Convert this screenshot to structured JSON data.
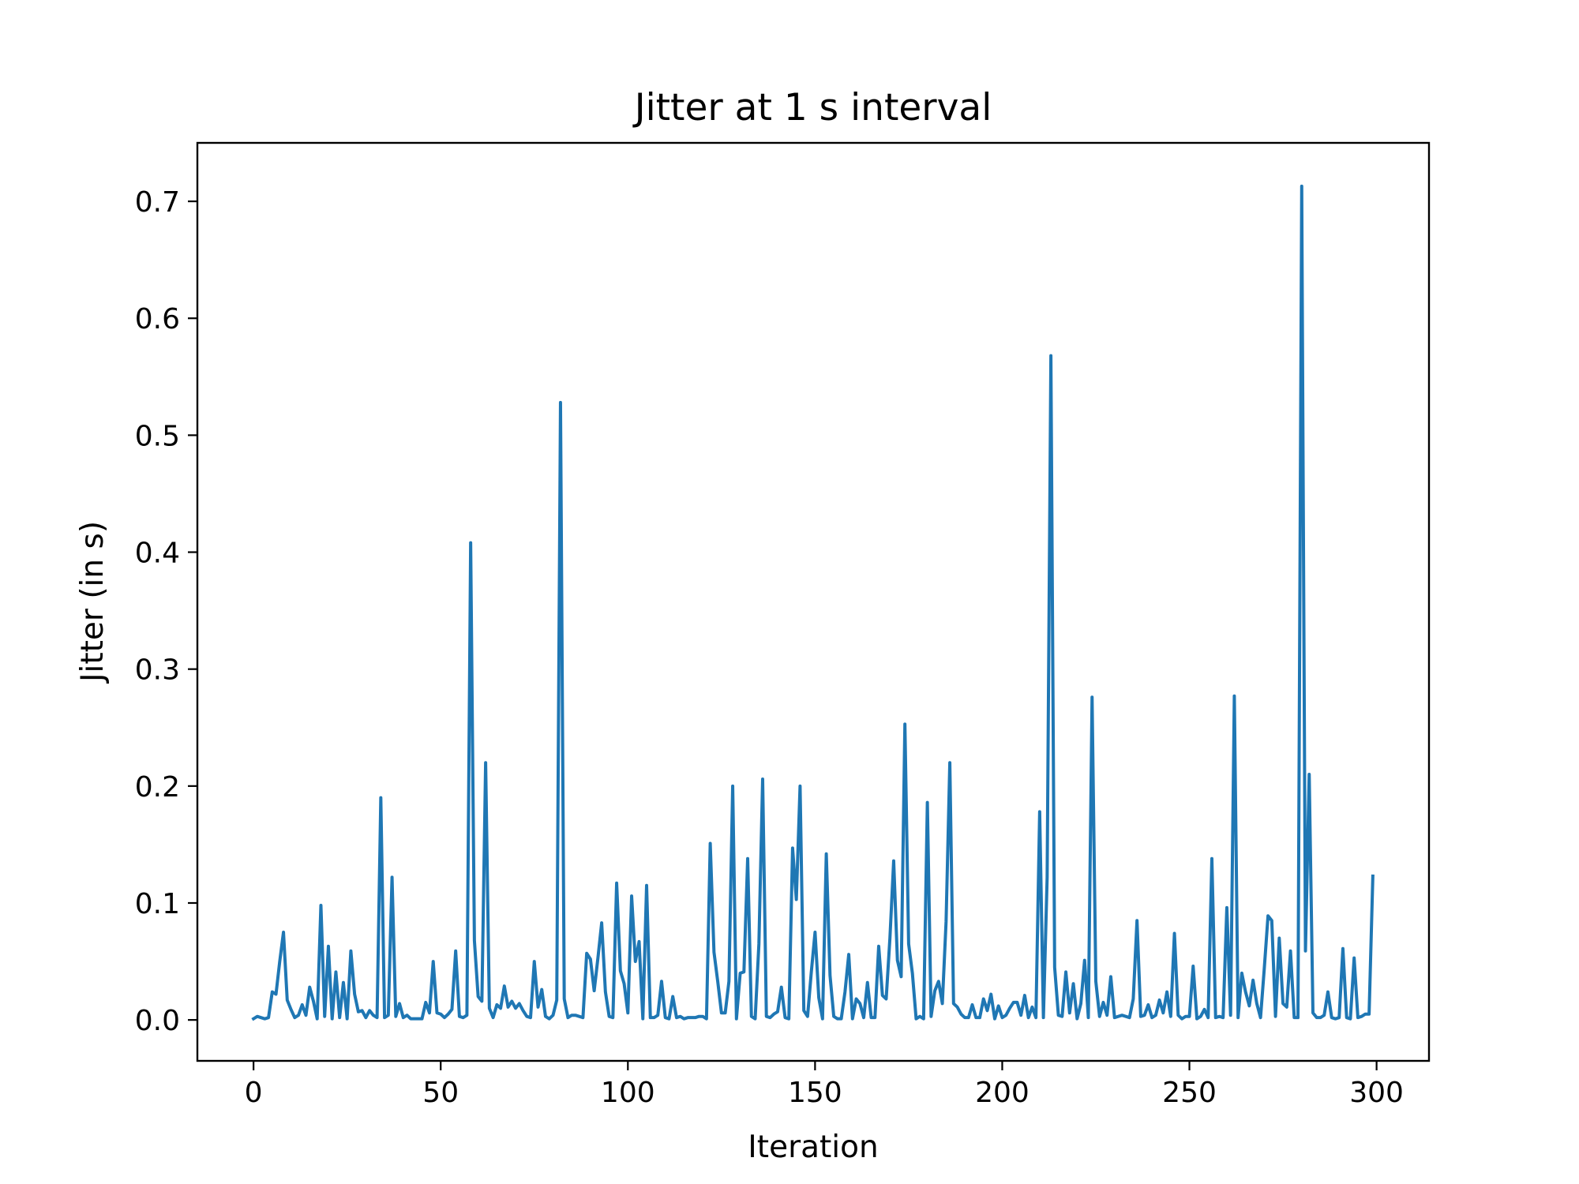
{
  "chart_data": {
    "type": "line",
    "title": "Jitter at 1 s interval",
    "xlabel": "Iteration",
    "ylabel": "Jitter (in s)",
    "xlim": [
      -15,
      314
    ],
    "ylim": [
      -0.035,
      0.75
    ],
    "xticks": [
      0,
      50,
      100,
      150,
      200,
      250,
      300
    ],
    "yticks": [
      0.0,
      0.1,
      0.2,
      0.3,
      0.4,
      0.5,
      0.6,
      0.7
    ],
    "ytick_labels": [
      "0.0",
      "0.1",
      "0.2",
      "0.3",
      "0.4",
      "0.5",
      "0.6",
      "0.7"
    ],
    "grid": false,
    "color": "#1f77b4",
    "series": [
      {
        "x_start": 0,
        "x_step": 1,
        "values": [
          0.001,
          0.003,
          0.002,
          0.001,
          0.002,
          0.024,
          0.022,
          0.05,
          0.075,
          0.017,
          0.009,
          0.002,
          0.004,
          0.013,
          0.004,
          0.028,
          0.016,
          0.001,
          0.098,
          0.003,
          0.063,
          0.001,
          0.041,
          0.002,
          0.032,
          0.001,
          0.059,
          0.022,
          0.007,
          0.008,
          0.002,
          0.008,
          0.004,
          0.002,
          0.19,
          0.002,
          0.004,
          0.122,
          0.003,
          0.014,
          0.002,
          0.004,
          0.001,
          0.001,
          0.001,
          0.001,
          0.015,
          0.006,
          0.05,
          0.006,
          0.005,
          0.002,
          0.005,
          0.009,
          0.059,
          0.003,
          0.002,
          0.004,
          0.408,
          0.068,
          0.02,
          0.016,
          0.22,
          0.01,
          0.002,
          0.013,
          0.01,
          0.029,
          0.011,
          0.016,
          0.01,
          0.014,
          0.008,
          0.003,
          0.002,
          0.05,
          0.011,
          0.026,
          0.003,
          0.001,
          0.004,
          0.017,
          0.528,
          0.018,
          0.002,
          0.004,
          0.004,
          0.003,
          0.002,
          0.057,
          0.052,
          0.025,
          0.053,
          0.083,
          0.024,
          0.003,
          0.002,
          0.117,
          0.042,
          0.031,
          0.006,
          0.106,
          0.05,
          0.067,
          0.001,
          0.115,
          0.002,
          0.002,
          0.004,
          0.033,
          0.002,
          0.001,
          0.02,
          0.002,
          0.003,
          0.001,
          0.002,
          0.002,
          0.002,
          0.003,
          0.003,
          0.001,
          0.151,
          0.058,
          0.033,
          0.006,
          0.006,
          0.033,
          0.2,
          0.001,
          0.04,
          0.041,
          0.138,
          0.003,
          0.001,
          0.065,
          0.206,
          0.003,
          0.002,
          0.005,
          0.007,
          0.028,
          0.002,
          0.001,
          0.147,
          0.103,
          0.2,
          0.008,
          0.003,
          0.041,
          0.075,
          0.019,
          0.001,
          0.142,
          0.038,
          0.003,
          0.001,
          0.001,
          0.024,
          0.056,
          0.001,
          0.018,
          0.014,
          0.002,
          0.032,
          0.002,
          0.002,
          0.063,
          0.021,
          0.018,
          0.07,
          0.136,
          0.051,
          0.037,
          0.253,
          0.065,
          0.04,
          0.001,
          0.003,
          0.001,
          0.186,
          0.003,
          0.025,
          0.033,
          0.014,
          0.084,
          0.22,
          0.014,
          0.011,
          0.005,
          0.002,
          0.002,
          0.013,
          0.002,
          0.002,
          0.018,
          0.008,
          0.022,
          0.001,
          0.012,
          0.002,
          0.004,
          0.01,
          0.015,
          0.015,
          0.004,
          0.021,
          0.002,
          0.011,
          0.002,
          0.178,
          0.002,
          0.122,
          0.568,
          0.045,
          0.004,
          0.003,
          0.041,
          0.006,
          0.031,
          0.001,
          0.014,
          0.051,
          0.002,
          0.276,
          0.033,
          0.003,
          0.015,
          0.004,
          0.037,
          0.002,
          0.003,
          0.004,
          0.003,
          0.002,
          0.018,
          0.085,
          0.003,
          0.004,
          0.013,
          0.002,
          0.004,
          0.017,
          0.006,
          0.024,
          0.003,
          0.074,
          0.004,
          0.001,
          0.003,
          0.003,
          0.046,
          0.001,
          0.003,
          0.009,
          0.002,
          0.138,
          0.002,
          0.003,
          0.002,
          0.096,
          0.004,
          0.277,
          0.002,
          0.04,
          0.024,
          0.012,
          0.034,
          0.014,
          0.002,
          0.044,
          0.089,
          0.085,
          0.003,
          0.07,
          0.014,
          0.011,
          0.059,
          0.002,
          0.002,
          0.713,
          0.059,
          0.21,
          0.006,
          0.002,
          0.002,
          0.004,
          0.024,
          0.002,
          0.001,
          0.002,
          0.061,
          0.002,
          0.001,
          0.053,
          0.002,
          0.003,
          0.005,
          0.005,
          0.123
        ]
      }
    ]
  }
}
